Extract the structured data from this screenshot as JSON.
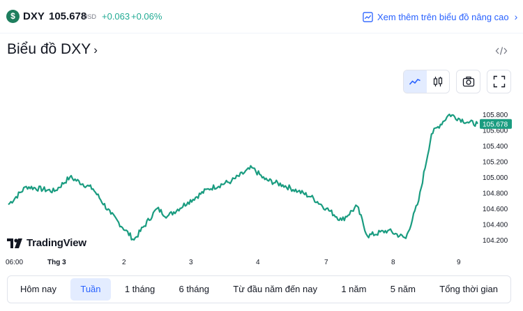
{
  "header": {
    "symbol_icon": "dollar-icon",
    "symbol": "DXY",
    "price": "105.678",
    "currency": "USD",
    "change": "+0.063",
    "change_pct": "+0.06%",
    "advanced_link": "Xem thêm trên biểu đồ nâng cao"
  },
  "title": "Biểu đồ DXY",
  "toolbar": {
    "icons": [
      "line-chart-icon",
      "candlestick-icon",
      "camera-icon",
      "fullscreen-icon"
    ],
    "active": "line-chart-icon"
  },
  "logo_text": "TradingView",
  "ranges": [
    {
      "label": "Hôm nay",
      "active": false
    },
    {
      "label": "Tuần",
      "active": true
    },
    {
      "label": "1 tháng",
      "active": false
    },
    {
      "label": "6 tháng",
      "active": false
    },
    {
      "label": "Từ đầu năm đến nay",
      "active": false
    },
    {
      "label": "1 năm",
      "active": false
    },
    {
      "label": "5 năm",
      "active": false
    },
    {
      "label": "Tổng thời gian",
      "active": false
    }
  ],
  "colors": {
    "line": "#1a9c80",
    "accent": "#2962ff",
    "positive": "#22ab94"
  },
  "chart_data": {
    "type": "line",
    "x_ticks": [
      "06:00",
      "Thg 3",
      "2",
      "3",
      "4",
      "7",
      "8",
      "9"
    ],
    "y_ticks": [
      "105.800",
      "105.600",
      "105.400",
      "105.200",
      "105.000",
      "104.800",
      "104.600",
      "104.400",
      "104.200"
    ],
    "ylim": [
      104.1,
      105.9
    ],
    "last_value": "105.678",
    "x": [
      0,
      0.35,
      0.9,
      1.2,
      1.65,
      2,
      2.45,
      2.9,
      3.1,
      3.5,
      3.9,
      4.35,
      4.75,
      5,
      5.35,
      5.65,
      5.9,
      6.2,
      6.5,
      6.8,
      7,
      7.4,
      7.75,
      8,
      8.25,
      8.6,
      8.95,
      9.15
    ],
    "values": [
      104.65,
      104.88,
      104.82,
      105.0,
      104.85,
      104.53,
      104.2,
      104.6,
      104.5,
      104.68,
      104.85,
      104.95,
      105.12,
      104.97,
      104.9,
      104.82,
      104.75,
      104.6,
      104.45,
      104.63,
      104.25,
      104.32,
      104.22,
      104.7,
      105.55,
      105.8,
      105.7,
      105.68
    ]
  }
}
